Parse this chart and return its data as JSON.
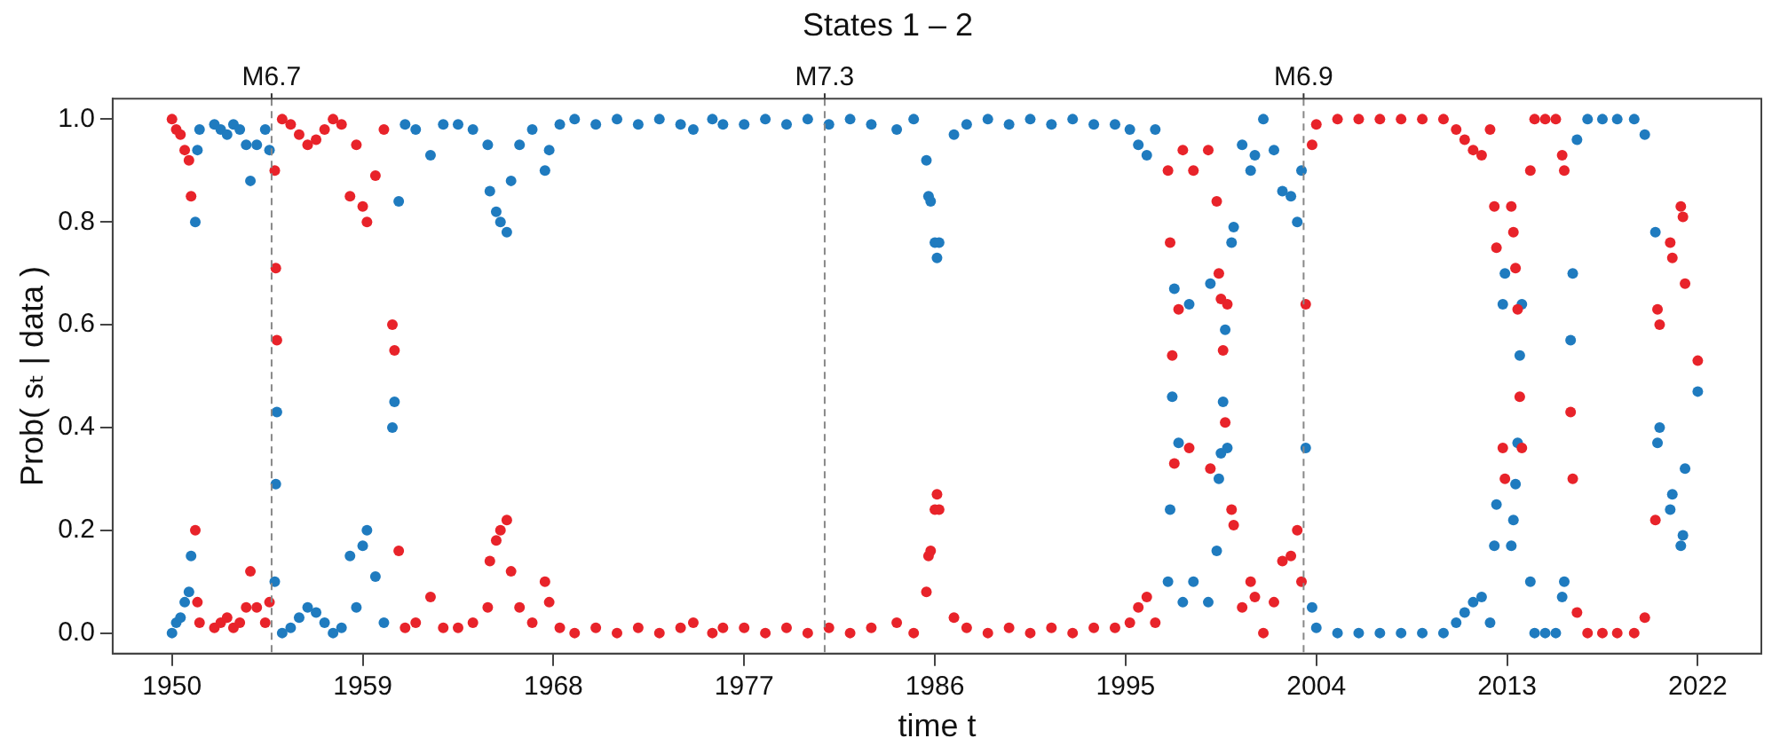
{
  "chart_data": {
    "type": "scatter",
    "title": "States 1 – 2",
    "xlabel": "time t",
    "ylabel": "Prob( sₜ | data )",
    "marker": "circle",
    "xlim": [
      1947.2,
      2025
    ],
    "xticks": [
      1950,
      1959,
      1968,
      1977,
      1986,
      1995,
      2004,
      2013,
      2022
    ],
    "ylim": [
      -0.04,
      1.04
    ],
    "yticks": [
      {
        "value": 0,
        "label": "0.0"
      },
      {
        "value": 0.2,
        "label": "0.2"
      },
      {
        "value": 0.4,
        "label": "0.4"
      },
      {
        "value": 0.6,
        "label": "0.6"
      },
      {
        "value": 0.8,
        "label": "0.8"
      },
      {
        "value": 1,
        "label": "1.0"
      }
    ],
    "ref_lines": [
      {
        "axis": "x",
        "value": 1954.7,
        "label": "M6.7",
        "color": "#888888",
        "line_style": "dashed"
      },
      {
        "axis": "x",
        "value": 1980.8,
        "label": "M7.3",
        "color": "#888888",
        "line_style": "dashed"
      },
      {
        "axis": "x",
        "value": 2003.4,
        "label": "M6.9",
        "color": "#888888",
        "line_style": "dashed"
      }
    ],
    "x": [
      1950.0,
      1950.2,
      1950.4,
      1950.6,
      1950.8,
      1950.9,
      1951.1,
      1951.2,
      1951.3,
      1952.0,
      1952.3,
      1952.6,
      1952.9,
      1953.2,
      1953.5,
      1953.7,
      1954.0,
      1954.4,
      1954.6,
      1954.85,
      1954.9,
      1954.95,
      1955.2,
      1955.6,
      1956.0,
      1956.4,
      1956.8,
      1957.2,
      1957.6,
      1958.0,
      1958.4,
      1958.7,
      1959.0,
      1959.2,
      1959.6,
      1960.0,
      1960.4,
      1960.5,
      1960.7,
      1961.0,
      1961.5,
      1962.2,
      1962.8,
      1963.5,
      1964.2,
      1964.9,
      1965.0,
      1965.3,
      1965.5,
      1965.8,
      1966.0,
      1966.4,
      1967.0,
      1967.6,
      1967.8,
      1968.3,
      1969.0,
      1970.0,
      1971.0,
      1972.0,
      1973.0,
      1974.0,
      1974.6,
      1975.5,
      1976.0,
      1977.0,
      1978.0,
      1979.0,
      1980.0,
      1981.0,
      1982.0,
      1983.0,
      1984.2,
      1985.0,
      1985.6,
      1985.7,
      1985.8,
      1986.0,
      1986.1,
      1986.2,
      1986.9,
      1987.5,
      1988.5,
      1989.5,
      1990.5,
      1991.5,
      1992.5,
      1993.5,
      1994.5,
      1995.2,
      1995.6,
      1996.0,
      1996.4,
      1997.0,
      1997.1,
      1997.2,
      1997.3,
      1997.5,
      1997.7,
      1998.0,
      1998.2,
      1998.9,
      1999.0,
      1999.3,
      1999.4,
      1999.5,
      1999.6,
      1999.7,
      1999.8,
      2000.0,
      2000.1,
      2000.5,
      2000.9,
      2001.1,
      2001.5,
      2002.0,
      2002.4,
      2002.8,
      2003.1,
      2003.3,
      2003.5,
      2003.8,
      2004.0,
      2005.0,
      2006.0,
      2007.0,
      2008.0,
      2009.0,
      2010.0,
      2010.6,
      2011.0,
      2011.4,
      2011.8,
      2012.2,
      2012.4,
      2012.5,
      2012.8,
      2012.9,
      2013.2,
      2013.3,
      2013.4,
      2013.5,
      2013.6,
      2013.7,
      2014.1,
      2014.3,
      2014.8,
      2015.3,
      2015.6,
      2015.7,
      2016.0,
      2016.1,
      2016.3,
      2016.8,
      2017.5,
      2018.2,
      2019.0,
      2019.5,
      2020.0,
      2020.1,
      2020.2,
      2020.7,
      2020.8,
      2021.2,
      2021.3,
      2021.4,
      2022.0
    ],
    "series": [
      {
        "color": "#e8232a",
        "values": [
          1.0,
          0.98,
          0.97,
          0.94,
          0.92,
          0.85,
          0.2,
          0.06,
          0.02,
          0.01,
          0.02,
          0.03,
          0.01,
          0.02,
          0.05,
          0.12,
          0.05,
          0.02,
          0.06,
          0.9,
          0.71,
          0.57,
          1.0,
          0.99,
          0.97,
          0.95,
          0.96,
          0.98,
          1.0,
          0.99,
          0.85,
          0.95,
          0.83,
          0.8,
          0.89,
          0.98,
          0.6,
          0.55,
          0.16,
          0.01,
          0.02,
          0.07,
          0.01,
          0.01,
          0.02,
          0.05,
          0.14,
          0.18,
          0.2,
          0.22,
          0.12,
          0.05,
          0.02,
          0.1,
          0.06,
          0.01,
          0.0,
          0.01,
          0.0,
          0.01,
          0.0,
          0.01,
          0.02,
          0.0,
          0.01,
          0.01,
          0.0,
          0.01,
          0.0,
          0.01,
          0.0,
          0.01,
          0.02,
          0.0,
          0.08,
          0.15,
          0.16,
          0.24,
          0.27,
          0.24,
          0.03,
          0.01,
          0.0,
          0.01,
          0.0,
          0.01,
          0.0,
          0.01,
          0.01,
          0.02,
          0.05,
          0.07,
          0.02,
          0.9,
          0.76,
          0.54,
          0.33,
          0.63,
          0.94,
          0.36,
          0.9,
          0.94,
          0.32,
          0.84,
          0.7,
          0.65,
          0.55,
          0.41,
          0.64,
          0.24,
          0.21,
          0.05,
          0.1,
          0.07,
          0.0,
          0.06,
          0.14,
          0.15,
          0.2,
          0.1,
          0.64,
          0.95,
          0.99,
          1.0,
          1.0,
          1.0,
          1.0,
          1.0,
          1.0,
          0.98,
          0.96,
          0.94,
          0.93,
          0.98,
          0.83,
          0.75,
          0.36,
          0.3,
          0.83,
          0.78,
          0.71,
          0.63,
          0.46,
          0.36,
          0.9,
          1.0,
          1.0,
          1.0,
          0.93,
          0.9,
          0.43,
          0.3,
          0.04,
          0.0,
          0.0,
          0.0,
          0.0,
          0.03,
          0.22,
          0.63,
          0.6,
          0.76,
          0.73,
          0.83,
          0.81,
          0.68,
          0.53
        ]
      },
      {
        "color": "#1f7bbf",
        "values": [
          0.0,
          0.02,
          0.03,
          0.06,
          0.08,
          0.15,
          0.8,
          0.94,
          0.98,
          0.99,
          0.98,
          0.97,
          0.99,
          0.98,
          0.95,
          0.88,
          0.95,
          0.98,
          0.94,
          0.1,
          0.29,
          0.43,
          0.0,
          0.01,
          0.03,
          0.05,
          0.04,
          0.02,
          0.0,
          0.01,
          0.15,
          0.05,
          0.17,
          0.2,
          0.11,
          0.02,
          0.4,
          0.45,
          0.84,
          0.99,
          0.98,
          0.93,
          0.99,
          0.99,
          0.98,
          0.95,
          0.86,
          0.82,
          0.8,
          0.78,
          0.88,
          0.95,
          0.98,
          0.9,
          0.94,
          0.99,
          1.0,
          0.99,
          1.0,
          0.99,
          1.0,
          0.99,
          0.98,
          1.0,
          0.99,
          0.99,
          1.0,
          0.99,
          1.0,
          0.99,
          1.0,
          0.99,
          0.98,
          1.0,
          0.92,
          0.85,
          0.84,
          0.76,
          0.73,
          0.76,
          0.97,
          0.99,
          1.0,
          0.99,
          1.0,
          0.99,
          1.0,
          0.99,
          0.99,
          0.98,
          0.95,
          0.93,
          0.98,
          0.1,
          0.24,
          0.46,
          0.67,
          0.37,
          0.06,
          0.64,
          0.1,
          0.06,
          0.68,
          0.16,
          0.3,
          0.35,
          0.45,
          0.59,
          0.36,
          0.76,
          0.79,
          0.95,
          0.9,
          0.93,
          1.0,
          0.94,
          0.86,
          0.85,
          0.8,
          0.9,
          0.36,
          0.05,
          0.01,
          0.0,
          0.0,
          0.0,
          0.0,
          0.0,
          0.0,
          0.02,
          0.04,
          0.06,
          0.07,
          0.02,
          0.17,
          0.25,
          0.64,
          0.7,
          0.17,
          0.22,
          0.29,
          0.37,
          0.54,
          0.64,
          0.1,
          0.0,
          0.0,
          0.0,
          0.07,
          0.1,
          0.57,
          0.7,
          0.96,
          1.0,
          1.0,
          1.0,
          1.0,
          0.97,
          0.78,
          0.37,
          0.4,
          0.24,
          0.27,
          0.17,
          0.19,
          0.32,
          0.47
        ]
      }
    ]
  }
}
